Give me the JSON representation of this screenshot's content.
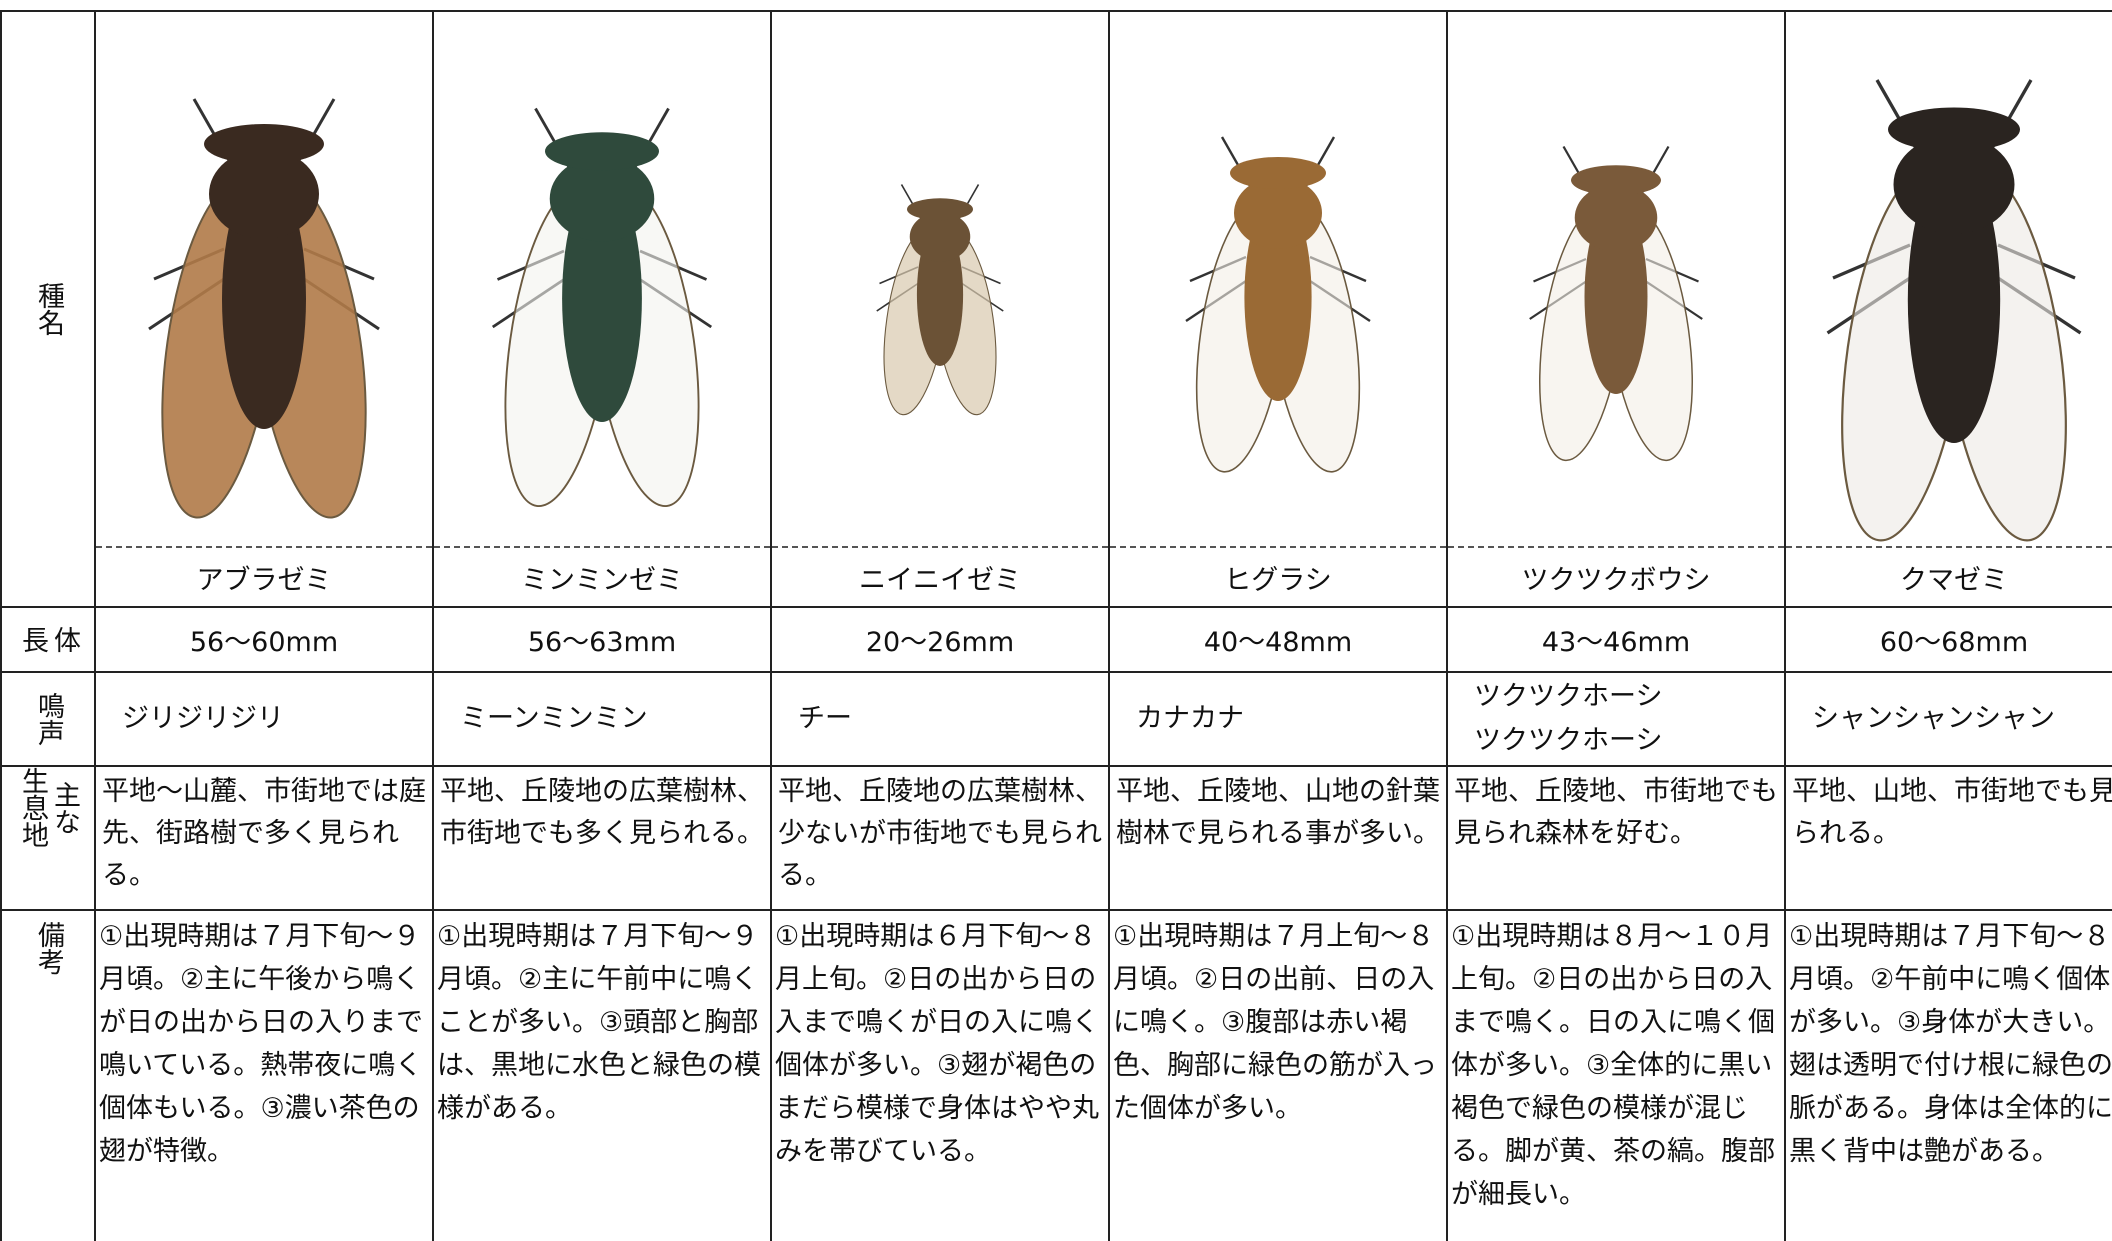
{
  "table": {
    "row_headers": [
      [
        "種名"
      ],
      [
        "体",
        "長"
      ],
      [
        "鳴声"
      ],
      [
        "主な",
        "生息地"
      ],
      [
        "備考"
      ]
    ],
    "columns": [
      {
        "name": "アブラゼミ",
        "length": "56〜60mm",
        "voice": [
          "ジリジリジリ"
        ],
        "habitat": "平地〜山麓、市街地では庭先、街路樹で多く見られる。",
        "notes": "①出現時期は７月下旬〜９月頃。②主に午後から鳴くが日の出から日の入りまで鳴いている。熱帯夜に鳴く個体もいる。③濃い茶色の翅が特徴。"
      },
      {
        "name": "ミンミンゼミ",
        "length": "56〜63mm",
        "voice": [
          "ミーンミンミン"
        ],
        "habitat": "平地、丘陵地の広葉樹林、市街地でも多く見られる。",
        "notes": "①出現時期は７月下旬〜９月頃。②主に午前中に鳴くことが多い。③頭部と胸部は、黒地に水色と緑色の模様がある。"
      },
      {
        "name": "ニイニイゼミ",
        "length": "20〜26mm",
        "voice": [
          "チー"
        ],
        "habitat": "平地、丘陵地の広葉樹林、少ないが市街地でも見られる。",
        "notes": "①出現時期は６月下旬〜８月上旬。②日の出から日の入まで鳴くが日の入に鳴く個体が多い。③翅が褐色のまだら模様で身体はやや丸みを帯びている。"
      },
      {
        "name": "ヒグラシ",
        "length": "40〜48mm",
        "voice": [
          "カナカナ"
        ],
        "habitat": "平地、丘陵地、山地の針葉樹林で見られる事が多い。",
        "notes": "①出現時期は７月上旬〜８月頃。②日の出前、日の入に鳴く。③腹部は赤い褐色、胸部に緑色の筋が入った個体が多い。"
      },
      {
        "name": "ツクツクボウシ",
        "length": "43〜46mm",
        "voice": [
          "ツクツクホーシ",
          "ツクツクホーシ"
        ],
        "habitat": "平地、丘陵地、市街地でも見られ森林を好む。",
        "notes": "①出現時期は８月〜１０月上旬。②日の出から日の入まで鳴く。日の入に鳴く個体が多い。③全体的に黒い褐色で緑色の模様が混じる。脚が黄、茶の縞。腹部が細長い。"
      },
      {
        "name": "クマゼミ",
        "length": "60〜68mm",
        "voice": [
          "シャンシャンシャン"
        ],
        "habitat": "平地、山地、市街地でも見られる。",
        "notes": "①出現時期は７月下旬〜８月頃。②午前中に鳴く個体が多い。③身体が大きい。翅は透明で付け根に緑色の脈がある。身体は全体的に黒く背中は艶がある。"
      }
    ]
  }
}
